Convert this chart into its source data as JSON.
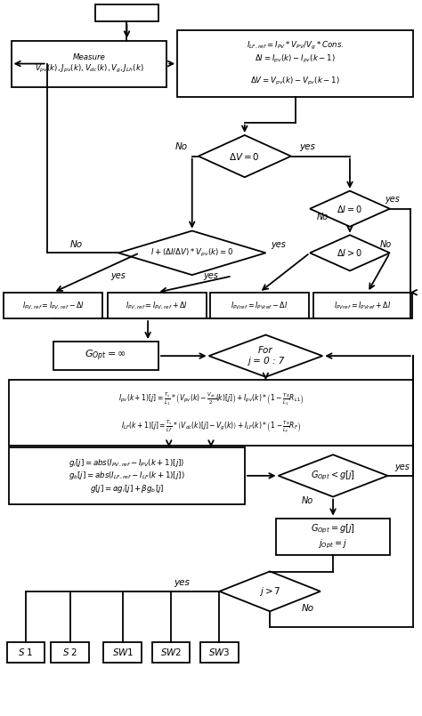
{
  "bg": "#ffffff",
  "lw": 1.3,
  "figsize": [
    4.74,
    8.05
  ],
  "dpi": 100,
  "xlim": [
    0,
    10
  ],
  "ylim": [
    0,
    17
  ]
}
